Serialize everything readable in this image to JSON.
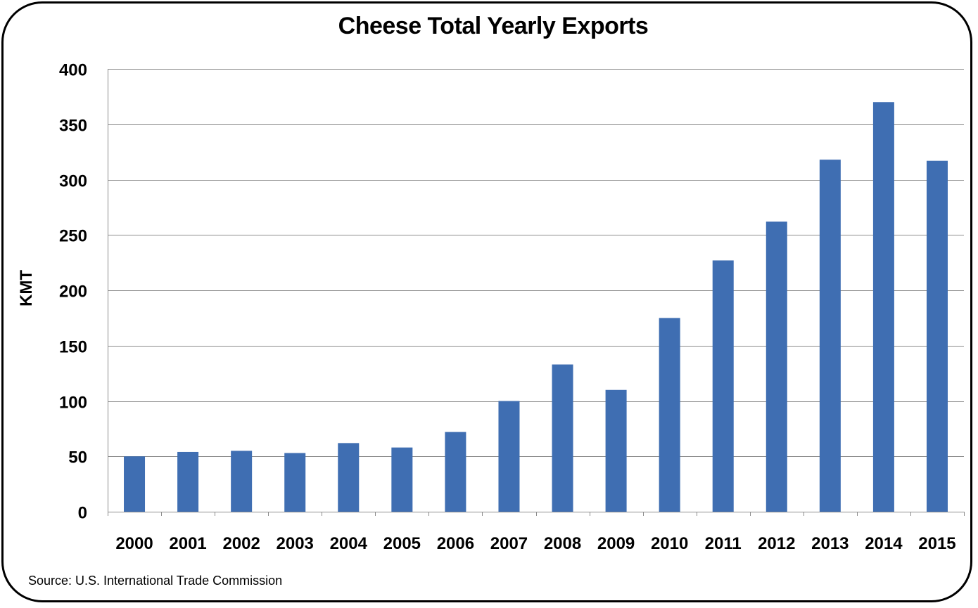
{
  "chart_data": {
    "type": "bar",
    "title": "Cheese Total Yearly Exports",
    "xlabel": "",
    "ylabel": "KMT",
    "categories": [
      "2000",
      "2001",
      "2002",
      "2003",
      "2004",
      "2005",
      "2006",
      "2007",
      "2008",
      "2009",
      "2010",
      "2011",
      "2012",
      "2013",
      "2014",
      "2015"
    ],
    "values": [
      50,
      54,
      55,
      53,
      62,
      58,
      72,
      100,
      133,
      110,
      175,
      227,
      262,
      318,
      370,
      317
    ],
    "ylim": [
      0,
      400
    ],
    "yticks": [
      "0",
      "50",
      "100",
      "150",
      "200",
      "250",
      "300",
      "350",
      "400"
    ],
    "grid": true,
    "legend": "none",
    "bar_color": "#3F6EB2",
    "source": "Source:  U.S. International Trade Commission"
  }
}
